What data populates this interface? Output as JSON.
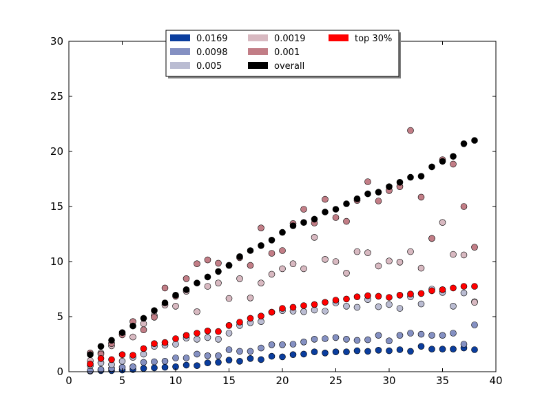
{
  "chart_data": {
    "type": "scatter",
    "xlim": [
      0,
      40
    ],
    "ylim": [
      0,
      30
    ],
    "x_ticks": [
      "0",
      "5",
      "10",
      "15",
      "20",
      "25",
      "30",
      "35",
      "40"
    ],
    "y_ticks": [
      "0",
      "5",
      "10",
      "15",
      "20",
      "25",
      "30"
    ],
    "x_tick_values": [
      0,
      5,
      10,
      15,
      20,
      25,
      30,
      35,
      40
    ],
    "y_tick_values": [
      0,
      5,
      10,
      15,
      20,
      25,
      30
    ],
    "grid": false,
    "legend_position": "top-center",
    "x": [
      2,
      3,
      4,
      5,
      6,
      7,
      8,
      9,
      10,
      11,
      12,
      13,
      14,
      15,
      16,
      17,
      18,
      19,
      20,
      21,
      22,
      23,
      24,
      25,
      26,
      27,
      28,
      29,
      30,
      31,
      32,
      33,
      34,
      35,
      36,
      37,
      38
    ],
    "series": [
      {
        "name": "0.0169",
        "color": "#0a3d9e",
        "values": [
          0.05,
          0.1,
          0.1,
          0.15,
          0.2,
          0.3,
          0.35,
          0.4,
          0.45,
          0.6,
          0.55,
          0.8,
          0.85,
          1.05,
          0.95,
          1.2,
          1.1,
          1.4,
          1.35,
          1.55,
          1.6,
          1.8,
          1.7,
          1.8,
          1.8,
          1.9,
          1.85,
          1.95,
          1.9,
          2.0,
          1.85,
          2.3,
          2.05,
          2.05,
          2.05,
          2.15,
          2.0
        ]
      },
      {
        "name": "0.0098",
        "color": "#8490c2",
        "values": [
          0.1,
          0.2,
          0.3,
          0.4,
          0.45,
          0.85,
          0.9,
          0.95,
          1.25,
          1.25,
          1.6,
          1.45,
          1.45,
          2.0,
          1.85,
          1.85,
          2.15,
          2.45,
          2.45,
          2.5,
          2.7,
          2.95,
          3.0,
          3.1,
          2.95,
          2.85,
          2.9,
          3.3,
          2.8,
          3.3,
          3.5,
          3.4,
          3.3,
          3.3,
          3.5,
          2.5,
          4.25
        ]
      },
      {
        "name": "0.005",
        "color": "#babcd2",
        "values": [
          0.55,
          0.8,
          0.65,
          0.95,
          1.3,
          1.6,
          2.3,
          2.4,
          2.5,
          3.05,
          2.95,
          3.1,
          2.95,
          3.5,
          4.2,
          4.45,
          4.55,
          5.4,
          5.55,
          5.5,
          5.45,
          5.6,
          5.5,
          6.25,
          5.95,
          5.85,
          6.55,
          5.9,
          6.1,
          5.75,
          6.8,
          6.15,
          7.5,
          7.2,
          5.95,
          7.15,
          6.35
        ]
      },
      {
        "name": "0.0019",
        "color": "#d8b9c1",
        "values": [
          1.0,
          1.7,
          2.35,
          3.4,
          3.15,
          4.35,
          5.1,
          6.05,
          5.95,
          7.3,
          5.45,
          7.75,
          8.05,
          6.65,
          8.45,
          6.7,
          8.05,
          8.85,
          9.35,
          9.8,
          9.35,
          12.2,
          10.2,
          10.0,
          8.95,
          10.9,
          10.8,
          9.6,
          10.05,
          9.95,
          10.9,
          9.4,
          12.1,
          13.55,
          10.65,
          10.6,
          6.3
        ]
      },
      {
        "name": "0.001",
        "color": "#c27d86",
        "values": [
          1.7,
          1.6,
          2.55,
          3.35,
          4.55,
          3.8,
          4.95,
          7.6,
          6.85,
          8.45,
          9.8,
          10.15,
          9.85,
          9.65,
          10.35,
          9.65,
          13.05,
          10.75,
          11.0,
          13.45,
          14.75,
          13.5,
          15.65,
          14.0,
          13.65,
          15.55,
          17.25,
          15.5,
          16.45,
          16.8,
          21.9,
          15.85,
          12.1,
          19.25,
          18.85,
          15.0,
          11.3
        ]
      },
      {
        "name": "overall",
        "color": "#000000",
        "values": [
          1.55,
          2.3,
          2.85,
          3.55,
          4.15,
          4.85,
          5.55,
          6.25,
          6.95,
          7.45,
          8.05,
          8.6,
          9.1,
          9.65,
          10.45,
          11.0,
          11.45,
          11.95,
          12.65,
          13.25,
          13.55,
          13.85,
          14.5,
          14.75,
          15.25,
          15.7,
          16.15,
          16.3,
          16.8,
          17.2,
          17.65,
          17.75,
          18.6,
          19.1,
          19.55,
          20.7,
          21.0
        ]
      },
      {
        "name": "top 30%",
        "color": "#ff0000",
        "values": [
          0.7,
          1.2,
          1.1,
          1.55,
          1.5,
          2.1,
          2.55,
          2.65,
          3.0,
          3.3,
          3.5,
          3.7,
          3.65,
          4.2,
          4.5,
          4.85,
          5.05,
          5.4,
          5.75,
          5.85,
          6.0,
          6.1,
          6.3,
          6.5,
          6.6,
          6.8,
          6.9,
          6.85,
          6.75,
          6.95,
          7.05,
          7.1,
          7.35,
          7.45,
          7.6,
          7.75,
          7.75
        ]
      }
    ]
  }
}
